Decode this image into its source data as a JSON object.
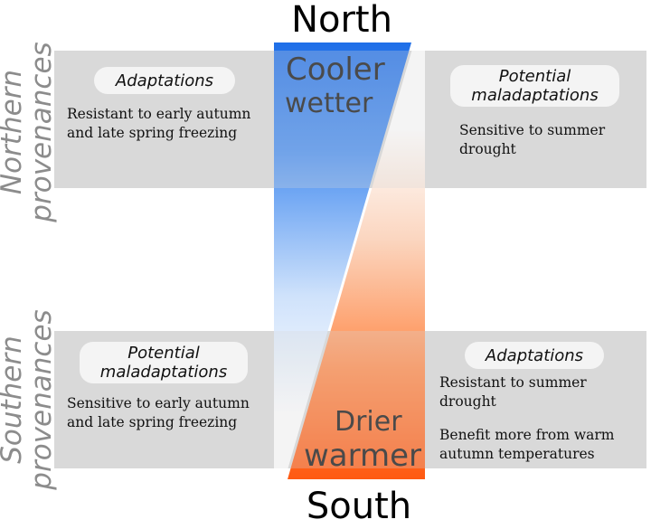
{
  "compass": {
    "north": "North",
    "south": "South"
  },
  "climate": {
    "north_line1": "Cooler",
    "north_line2": "wetter",
    "south_line1": "Drier",
    "south_line2": "warmer"
  },
  "provenances": {
    "northern": {
      "line1": "Northern",
      "line2": "provenances"
    },
    "southern": {
      "line1": "Southern",
      "line2": "provenances"
    }
  },
  "northern_row": {
    "left_heading": "Adaptations",
    "left_text": [
      "Resistant to early autumn",
      "and late spring freezing"
    ],
    "right_heading": [
      "Potential",
      "maladaptations"
    ],
    "right_text": [
      "Sensitive to summer",
      "drought"
    ]
  },
  "southern_row": {
    "left_heading": [
      "Potential",
      "maladaptations"
    ],
    "left_text": [
      "Sensitive to early autumn",
      "and late spring freezing"
    ],
    "right_heading": "Adaptations",
    "right_text": [
      "Resistant to summer",
      "drought"
    ],
    "right_text_2": [
      "Benefit more from warm",
      "autumn temperatures"
    ]
  },
  "colors": {
    "band_gray": "#d9d9d9",
    "cool_blue": "#1f6fe8",
    "warm_orange": "#ff5a12",
    "label_gray": "#8c8c8c",
    "climate_text": "#4a4a4a"
  }
}
